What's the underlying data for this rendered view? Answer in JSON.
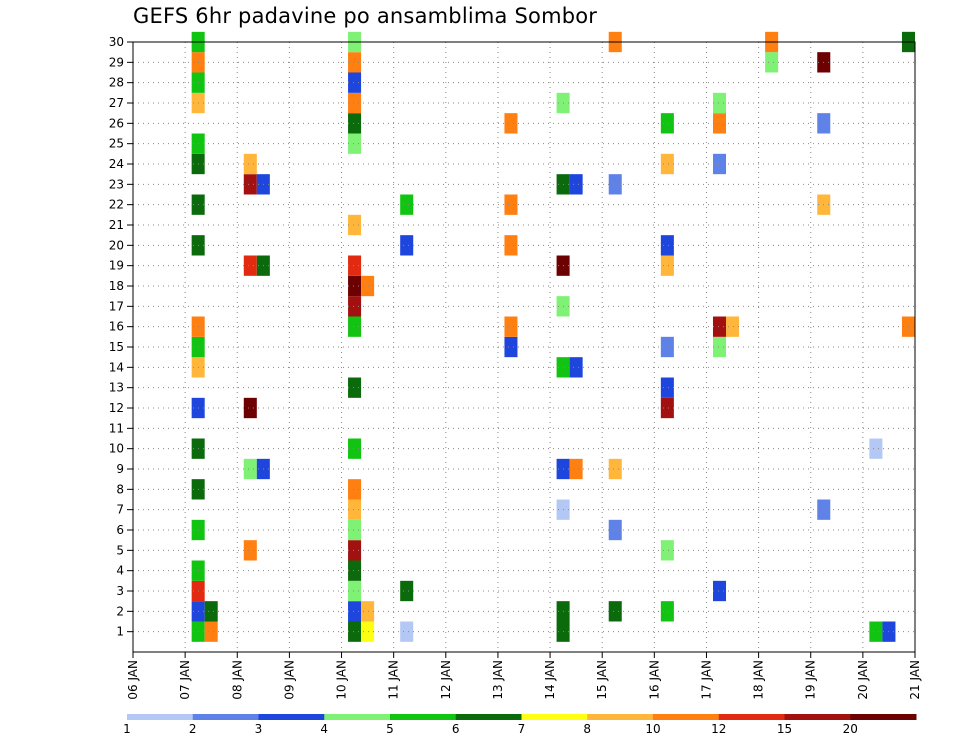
{
  "chart_data": {
    "type": "heatmap",
    "title": "GEFS 6hr padavine po ansamblima Sombor",
    "xlabel": "",
    "ylabel": "",
    "x_ticks": [
      "06 JAN",
      "07 JAN",
      "08 JAN",
      "09 JAN",
      "10 JAN",
      "11 JAN",
      "12 JAN",
      "13 JAN",
      "14 JAN",
      "15 JAN",
      "16 JAN",
      "17 JAN",
      "18 JAN",
      "19 JAN",
      "20 JAN",
      "21 JAN"
    ],
    "y_ticks": [
      1,
      2,
      3,
      4,
      5,
      6,
      7,
      8,
      9,
      10,
      11,
      12,
      13,
      14,
      15,
      16,
      17,
      18,
      19,
      20,
      21,
      22,
      23,
      24,
      25,
      26,
      27,
      28,
      29,
      30
    ],
    "grid": true,
    "legend": {
      "placement": "bottom",
      "labels": [
        "1",
        "2",
        "3",
        "4",
        "5",
        "6",
        "7",
        "8",
        "10",
        "12",
        "15",
        "20"
      ],
      "colors": [
        "#b4c8f5",
        "#5f82e9",
        "#1e46dc",
        "#7ff276",
        "#11c411",
        "#0b6a0b",
        "#ffff11",
        "#ffb63b",
        "#ff7f11",
        "#e22a11",
        "#a31010",
        "#6d0000"
      ]
    },
    "cells": [
      {
        "x": "07 JAN",
        "y": 1,
        "v": 5
      },
      {
        "x": "07 JAN",
        "y": 1,
        "v": 10
      },
      {
        "x": "10 JAN",
        "y": 1,
        "v": 6
      },
      {
        "x": "10 JAN",
        "y": 1,
        "v": 7
      },
      {
        "x": "11 JAN",
        "y": 1,
        "v": 1
      },
      {
        "x": "14 JAN",
        "y": 1,
        "v": 6
      },
      {
        "x": "20 JAN",
        "y": 1,
        "v": 5
      },
      {
        "x": "20 JAN",
        "y": 1,
        "v": 3
      },
      {
        "x": "07 JAN",
        "y": 2,
        "v": 3
      },
      {
        "x": "07 JAN",
        "y": 2,
        "v": 6
      },
      {
        "x": "10 JAN",
        "y": 2,
        "v": 3
      },
      {
        "x": "10 JAN",
        "y": 2,
        "v": 8
      },
      {
        "x": "14 JAN",
        "y": 2,
        "v": 6
      },
      {
        "x": "15 JAN",
        "y": 2,
        "v": 6
      },
      {
        "x": "16 JAN",
        "y": 2,
        "v": 5
      },
      {
        "x": "07 JAN",
        "y": 3,
        "v": 12
      },
      {
        "x": "10 JAN",
        "y": 3,
        "v": 4
      },
      {
        "x": "11 JAN",
        "y": 3,
        "v": 6
      },
      {
        "x": "17 JAN",
        "y": 3,
        "v": 3
      },
      {
        "x": "07 JAN",
        "y": 4,
        "v": 5
      },
      {
        "x": "10 JAN",
        "y": 4,
        "v": 6
      },
      {
        "x": "08 JAN",
        "y": 5,
        "v": 10
      },
      {
        "x": "10 JAN",
        "y": 5,
        "v": 15
      },
      {
        "x": "16 JAN",
        "y": 5,
        "v": 4
      },
      {
        "x": "07 JAN",
        "y": 6,
        "v": 5
      },
      {
        "x": "10 JAN",
        "y": 6,
        "v": 4
      },
      {
        "x": "15 JAN",
        "y": 6,
        "v": 2
      },
      {
        "x": "10 JAN",
        "y": 7,
        "v": 8
      },
      {
        "x": "14 JAN",
        "y": 7,
        "v": 1
      },
      {
        "x": "19 JAN",
        "y": 7,
        "v": 2
      },
      {
        "x": "07 JAN",
        "y": 8,
        "v": 6
      },
      {
        "x": "10 JAN",
        "y": 8,
        "v": 10
      },
      {
        "x": "08 JAN",
        "y": 9,
        "v": 4
      },
      {
        "x": "08 JAN",
        "y": 9,
        "v": 3
      },
      {
        "x": "14 JAN",
        "y": 9,
        "v": 3
      },
      {
        "x": "14 JAN",
        "y": 9,
        "v": 10
      },
      {
        "x": "15 JAN",
        "y": 9,
        "v": 8
      },
      {
        "x": "07 JAN",
        "y": 10,
        "v": 6
      },
      {
        "x": "10 JAN",
        "y": 10,
        "v": 5
      },
      {
        "x": "20 JAN",
        "y": 10,
        "v": 1
      },
      {
        "x": "07 JAN",
        "y": 12,
        "v": 3
      },
      {
        "x": "08 JAN",
        "y": 12,
        "v": 20
      },
      {
        "x": "16 JAN",
        "y": 12,
        "v": 15
      },
      {
        "x": "10 JAN",
        "y": 13,
        "v": 6
      },
      {
        "x": "16 JAN",
        "y": 13,
        "v": 3
      },
      {
        "x": "07 JAN",
        "y": 14,
        "v": 8
      },
      {
        "x": "14 JAN",
        "y": 14,
        "v": 5
      },
      {
        "x": "14 JAN",
        "y": 14,
        "v": 3
      },
      {
        "x": "07 JAN",
        "y": 15,
        "v": 5
      },
      {
        "x": "13 JAN",
        "y": 15,
        "v": 3
      },
      {
        "x": "16 JAN",
        "y": 15,
        "v": 2
      },
      {
        "x": "17 JAN",
        "y": 15,
        "v": 4
      },
      {
        "x": "07 JAN",
        "y": 16,
        "v": 10
      },
      {
        "x": "10 JAN",
        "y": 16,
        "v": 5
      },
      {
        "x": "13 JAN",
        "y": 16,
        "v": 10
      },
      {
        "x": "17 JAN",
        "y": 16,
        "v": 15
      },
      {
        "x": "17 JAN",
        "y": 16,
        "v": 8
      },
      {
        "x": "21 JAN",
        "y": 16,
        "v": 10
      },
      {
        "x": "10 JAN",
        "y": 17,
        "v": 15
      },
      {
        "x": "14 JAN",
        "y": 17,
        "v": 4
      },
      {
        "x": "10 JAN",
        "y": 18,
        "v": 20
      },
      {
        "x": "10 JAN",
        "y": 18,
        "v": 10
      },
      {
        "x": "08 JAN",
        "y": 19,
        "v": 12
      },
      {
        "x": "08 JAN",
        "y": 19,
        "v": 6
      },
      {
        "x": "10 JAN",
        "y": 19,
        "v": 12
      },
      {
        "x": "14 JAN",
        "y": 19,
        "v": 20
      },
      {
        "x": "16 JAN",
        "y": 19,
        "v": 8
      },
      {
        "x": "07 JAN",
        "y": 20,
        "v": 6
      },
      {
        "x": "11 JAN",
        "y": 20,
        "v": 3
      },
      {
        "x": "13 JAN",
        "y": 20,
        "v": 10
      },
      {
        "x": "16 JAN",
        "y": 20,
        "v": 3
      },
      {
        "x": "10 JAN",
        "y": 21,
        "v": 8
      },
      {
        "x": "07 JAN",
        "y": 22,
        "v": 6
      },
      {
        "x": "11 JAN",
        "y": 22,
        "v": 5
      },
      {
        "x": "13 JAN",
        "y": 22,
        "v": 10
      },
      {
        "x": "19 JAN",
        "y": 22,
        "v": 8
      },
      {
        "x": "08 JAN",
        "y": 23,
        "v": 15
      },
      {
        "x": "08 JAN",
        "y": 23,
        "v": 3
      },
      {
        "x": "14 JAN",
        "y": 23,
        "v": 6
      },
      {
        "x": "14 JAN",
        "y": 23,
        "v": 3
      },
      {
        "x": "15 JAN",
        "y": 23,
        "v": 2
      },
      {
        "x": "07 JAN",
        "y": 24,
        "v": 6
      },
      {
        "x": "08 JAN",
        "y": 24,
        "v": 8
      },
      {
        "x": "16 JAN",
        "y": 24,
        "v": 8
      },
      {
        "x": "17 JAN",
        "y": 24,
        "v": 2
      },
      {
        "x": "07 JAN",
        "y": 25,
        "v": 5
      },
      {
        "x": "10 JAN",
        "y": 25,
        "v": 4
      },
      {
        "x": "10 JAN",
        "y": 26,
        "v": 6
      },
      {
        "x": "13 JAN",
        "y": 26,
        "v": 10
      },
      {
        "x": "16 JAN",
        "y": 26,
        "v": 5
      },
      {
        "x": "17 JAN",
        "y": 26,
        "v": 10
      },
      {
        "x": "19 JAN",
        "y": 26,
        "v": 2
      },
      {
        "x": "07 JAN",
        "y": 27,
        "v": 8
      },
      {
        "x": "10 JAN",
        "y": 27,
        "v": 10
      },
      {
        "x": "14 JAN",
        "y": 27,
        "v": 4
      },
      {
        "x": "17 JAN",
        "y": 27,
        "v": 4
      },
      {
        "x": "07 JAN",
        "y": 28,
        "v": 5
      },
      {
        "x": "10 JAN",
        "y": 28,
        "v": 3
      },
      {
        "x": "07 JAN",
        "y": 29,
        "v": 10
      },
      {
        "x": "10 JAN",
        "y": 29,
        "v": 10
      },
      {
        "x": "18 JAN",
        "y": 29,
        "v": 4
      },
      {
        "x": "19 JAN",
        "y": 29,
        "v": 20
      },
      {
        "x": "07 JAN",
        "y": 30,
        "v": 5
      },
      {
        "x": "10 JAN",
        "y": 30,
        "v": 4
      },
      {
        "x": "15 JAN",
        "y": 30,
        "v": 10
      },
      {
        "x": "18 JAN",
        "y": 30,
        "v": 10
      },
      {
        "x": "21 JAN",
        "y": 30,
        "v": 6
      }
    ]
  }
}
